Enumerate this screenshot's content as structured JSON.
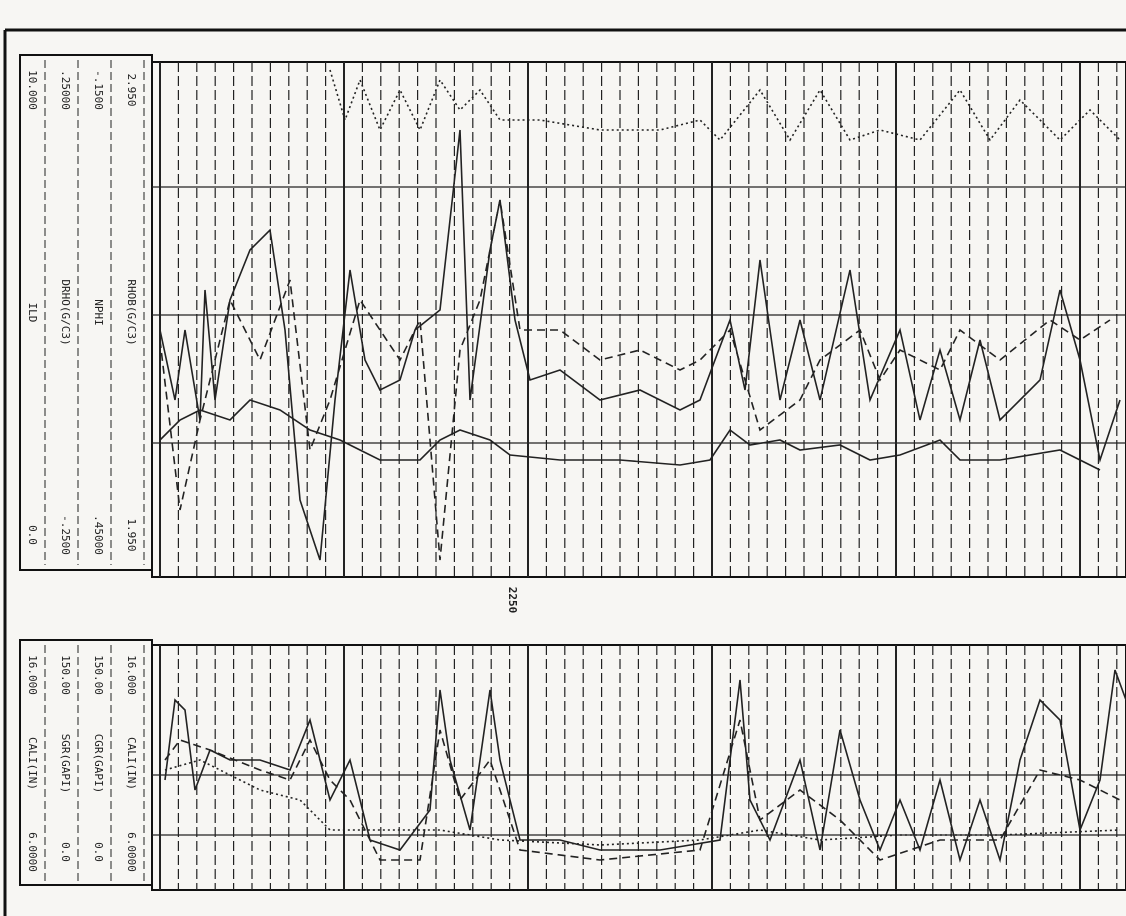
{
  "upper_header": {
    "curves": [
      {
        "left": "0.0",
        "name": "ILD",
        "right": "10.000"
      },
      {
        "left": "-.2500",
        "name": "DRHO(G/C3)",
        "right": ".25000"
      },
      {
        "left": ".45000",
        "name": "NPHI",
        "right": "-.1500"
      },
      {
        "left": "1.950",
        "name": "RHOB(G/C3)",
        "right": "2.950"
      }
    ]
  },
  "depth_label": "2250",
  "lower_header": {
    "curves": [
      {
        "left": "6.0000",
        "name": "CALI(IN)",
        "right": "16.000"
      },
      {
        "left": "0.0",
        "name": "SGR(GAPI)",
        "right": "150.00"
      },
      {
        "left": "0.0",
        "name": "CGR(GAPI)",
        "right": "150.00"
      },
      {
        "left": "6.0000",
        "name": "CALI(IN)",
        "right": "16.000"
      }
    ]
  }
}
